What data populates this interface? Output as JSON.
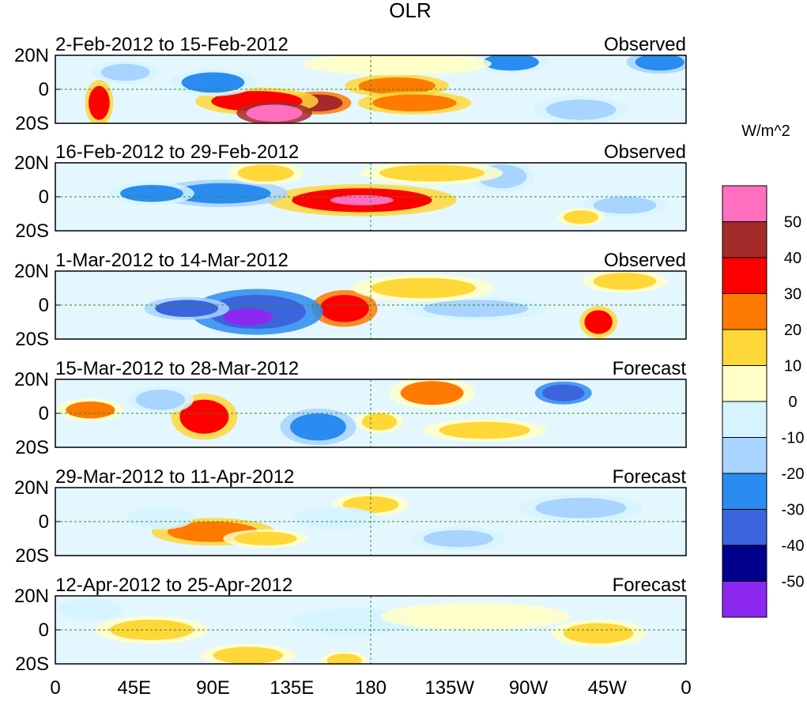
{
  "chart_data": {
    "type": "heatmap",
    "title": "OLR",
    "units": "W/m^2",
    "x_ticks": [
      "0",
      "45E",
      "90E",
      "135E",
      "180",
      "135W",
      "90W",
      "45W",
      "0"
    ],
    "x_range": [
      0,
      360
    ],
    "y_ticks": [
      "20N",
      "0",
      "20S"
    ],
    "y_range": [
      -20,
      20
    ],
    "panels": [
      {
        "period": "2-Feb-2012 to 15-Feb-2012",
        "kind": "Observed"
      },
      {
        "period": "16-Feb-2012 to 29-Feb-2012",
        "kind": "Observed"
      },
      {
        "period": "1-Mar-2012 to 14-Mar-2012",
        "kind": "Observed"
      },
      {
        "period": "15-Mar-2012 to 28-Mar-2012",
        "kind": "Forecast"
      },
      {
        "period": "29-Mar-2012 to 11-Apr-2012",
        "kind": "Forecast"
      },
      {
        "period": "12-Apr-2012 to 25-Apr-2012",
        "kind": "Forecast"
      }
    ],
    "colorbar": {
      "levels": [
        "50",
        "40",
        "30",
        "20",
        "10",
        "0",
        "-10",
        "-20",
        "-30",
        "-40",
        "-50"
      ],
      "colors": [
        "#ff6fc0",
        "#a52a2a",
        "#ff0000",
        "#ff7a00",
        "#ffd738",
        "#ffffc8",
        "#d6f4ff",
        "#a8d4ff",
        "#2a8cf0",
        "#3c64dc",
        "#00008c",
        "#8c28f0"
      ]
    },
    "anomalies": [
      [
        {
          "lon": 150,
          "lat": -8,
          "rx": 14,
          "ry": 5,
          "v": 40
        },
        {
          "lon": 115,
          "lat": -7,
          "rx": 26,
          "ry": 6,
          "v": 30
        },
        {
          "lon": 125,
          "lat": -14,
          "rx": 16,
          "ry": 5,
          "v": 55
        },
        {
          "lon": 195,
          "lat": 2,
          "rx": 22,
          "ry": 5,
          "v": 25
        },
        {
          "lon": 205,
          "lat": -8,
          "rx": 24,
          "ry": 5,
          "v": 25
        },
        {
          "lon": 25,
          "lat": -8,
          "rx": 6,
          "ry": 10,
          "v": 30
        },
        {
          "lon": 90,
          "lat": 4,
          "rx": 18,
          "ry": 6,
          "v": -25
        },
        {
          "lon": 260,
          "lat": 16,
          "rx": 16,
          "ry": 5,
          "v": -25
        },
        {
          "lon": 345,
          "lat": 16,
          "rx": 14,
          "ry": 5,
          "v": -30
        },
        {
          "lon": 300,
          "lat": -12,
          "rx": 20,
          "ry": 6,
          "v": -15
        },
        {
          "lon": 195,
          "lat": 15,
          "rx": 40,
          "ry": 5,
          "v": 5
        },
        {
          "lon": 40,
          "lat": 10,
          "rx": 14,
          "ry": 5,
          "v": -15
        }
      ],
      [
        {
          "lon": 175,
          "lat": -2,
          "rx": 40,
          "ry": 7,
          "v": 30
        },
        {
          "lon": 175,
          "lat": -2,
          "rx": 18,
          "ry": 3,
          "v": 50
        },
        {
          "lon": 95,
          "lat": 2,
          "rx": 28,
          "ry": 6,
          "v": -30
        },
        {
          "lon": 55,
          "lat": 2,
          "rx": 18,
          "ry": 5,
          "v": -25
        },
        {
          "lon": 255,
          "lat": 12,
          "rx": 14,
          "ry": 7,
          "v": -20
        },
        {
          "lon": 325,
          "lat": -5,
          "rx": 18,
          "ry": 5,
          "v": -15
        },
        {
          "lon": 215,
          "lat": 14,
          "rx": 30,
          "ry": 5,
          "v": 15
        },
        {
          "lon": 300,
          "lat": -12,
          "rx": 10,
          "ry": 4,
          "v": 15
        },
        {
          "lon": 120,
          "lat": 14,
          "rx": 16,
          "ry": 5,
          "v": 10
        }
      ],
      [
        {
          "lon": 165,
          "lat": -2,
          "rx": 14,
          "ry": 8,
          "v": 35
        },
        {
          "lon": 310,
          "lat": -10,
          "rx": 8,
          "ry": 7,
          "v": 30
        },
        {
          "lon": 115,
          "lat": -4,
          "rx": 28,
          "ry": 10,
          "v": -40
        },
        {
          "lon": 110,
          "lat": -7,
          "rx": 14,
          "ry": 5,
          "v": -55
        },
        {
          "lon": 75,
          "lat": -2,
          "rx": 18,
          "ry": 5,
          "v": -35
        },
        {
          "lon": 240,
          "lat": -2,
          "rx": 30,
          "ry": 5,
          "v": -20
        },
        {
          "lon": 210,
          "lat": 10,
          "rx": 30,
          "ry": 6,
          "v": 15
        },
        {
          "lon": 325,
          "lat": 14,
          "rx": 18,
          "ry": 5,
          "v": 10
        }
      ],
      [
        {
          "lon": 85,
          "lat": -2,
          "rx": 14,
          "ry": 10,
          "v": 30
        },
        {
          "lon": 215,
          "lat": 12,
          "rx": 18,
          "ry": 7,
          "v": 20
        },
        {
          "lon": 20,
          "lat": 2,
          "rx": 14,
          "ry": 5,
          "v": 20
        },
        {
          "lon": 150,
          "lat": -8,
          "rx": 16,
          "ry": 8,
          "v": -30
        },
        {
          "lon": 290,
          "lat": 12,
          "rx": 12,
          "ry": 5,
          "v": -40
        },
        {
          "lon": 60,
          "lat": 8,
          "rx": 14,
          "ry": 6,
          "v": -15
        },
        {
          "lon": 245,
          "lat": -10,
          "rx": 26,
          "ry": 5,
          "v": 10
        },
        {
          "lon": 185,
          "lat": -5,
          "rx": 10,
          "ry": 5,
          "v": 15
        }
      ],
      [
        {
          "lon": 90,
          "lat": -6,
          "rx": 26,
          "ry": 6,
          "v": 25
        },
        {
          "lon": 180,
          "lat": 10,
          "rx": 16,
          "ry": 5,
          "v": 15
        },
        {
          "lon": 120,
          "lat": -10,
          "rx": 18,
          "ry": 4,
          "v": 15
        },
        {
          "lon": 60,
          "lat": 2,
          "rx": 14,
          "ry": 5,
          "v": -10
        },
        {
          "lon": 300,
          "lat": 8,
          "rx": 26,
          "ry": 6,
          "v": -20
        },
        {
          "lon": 230,
          "lat": -10,
          "rx": 20,
          "ry": 5,
          "v": -15
        },
        {
          "lon": 160,
          "lat": 2,
          "rx": 18,
          "ry": 5,
          "v": -10
        }
      ],
      [
        {
          "lon": 55,
          "lat": 0,
          "rx": 24,
          "ry": 6,
          "v": 15
        },
        {
          "lon": 110,
          "lat": -15,
          "rx": 20,
          "ry": 5,
          "v": 15
        },
        {
          "lon": 310,
          "lat": -2,
          "rx": 20,
          "ry": 6,
          "v": 15
        },
        {
          "lon": 165,
          "lat": -18,
          "rx": 10,
          "ry": 4,
          "v": 15
        },
        {
          "lon": 170,
          "lat": 5,
          "rx": 26,
          "ry": 6,
          "v": -10
        },
        {
          "lon": 240,
          "lat": 8,
          "rx": 40,
          "ry": 6,
          "v": 5
        },
        {
          "lon": 20,
          "lat": 12,
          "rx": 14,
          "ry": 5,
          "v": -10
        }
      ]
    ]
  }
}
